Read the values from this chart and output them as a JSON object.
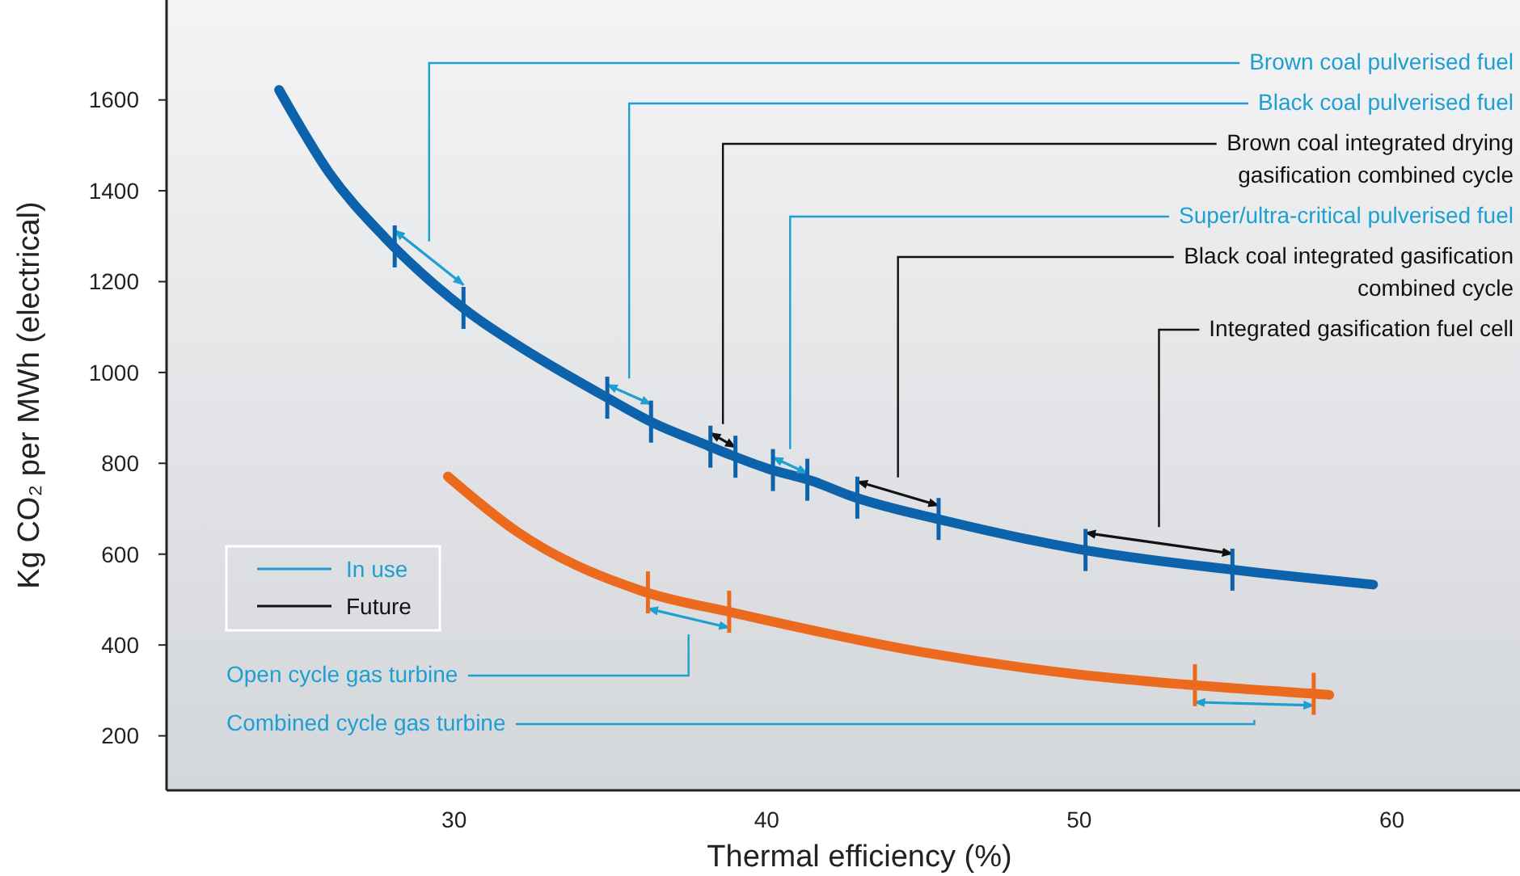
{
  "chart_data": {
    "type": "line",
    "xlabel": "Thermal efficiency (%)",
    "ylabel": "Kg CO₂ per MWh (electrical)",
    "xlim": [
      20.8,
      64.1
    ],
    "xticks": [
      30,
      40,
      50,
      60
    ],
    "ylim": [
      80,
      1820
    ],
    "yticks": [
      200,
      400,
      600,
      800,
      1000,
      1200,
      1400,
      1600
    ],
    "grid": false,
    "legend": "left",
    "line_style": "solid",
    "series": [
      {
        "color": "#0d63ab",
        "x": [
          24.4,
          26,
          27.8,
          30.4,
          32.5,
          34.7,
          36.4,
          37.9,
          38.9,
          40,
          41.5,
          42.7,
          45.8,
          50,
          55,
          59.4
        ],
        "values": [
          1622,
          1440,
          1296,
          1136,
          1040,
          952,
          888,
          845,
          817,
          789,
          760,
          728,
          672,
          611,
          565,
          533
        ]
      },
      {
        "color": "#ec6a1e",
        "x": [
          29.8,
          32,
          36,
          39,
          45,
          50,
          53.4,
          57.6,
          58
        ],
        "values": [
          771,
          650,
          519,
          470,
          384,
          335,
          313,
          292,
          290
        ]
      },
      {
        "name": "In use",
        "color": "#1e9fd1",
        "x": [
          28.1,
          30.3
        ],
        "values": [
          1313,
          1193
        ]
      },
      {
        "color": "#1e9fd1",
        "x": [
          34.9,
          36.3
        ],
        "values": [
          973,
          930
        ]
      },
      {
        "name": "Future",
        "color": "#111111",
        "x": [
          38.2,
          39
        ],
        "values": [
          867,
          835
        ]
      },
      {
        "color": "#1e9fd1",
        "x": [
          40.2,
          41.3
        ],
        "values": [
          813,
          778
        ]
      },
      {
        "color": "#111111",
        "x": [
          42.9,
          45.5
        ],
        "values": [
          760,
          707
        ]
      },
      {
        "color": "#111111",
        "x": [
          50.2,
          54.9
        ],
        "values": [
          647,
          601
        ]
      },
      {
        "color": "#1e9fd1",
        "x": [
          36.2,
          38.8
        ],
        "values": [
          480,
          438
        ]
      },
      {
        "color": "#1e9fd1",
        "x": [
          53.7,
          57.5
        ],
        "values": [
          274,
          267
        ]
      }
    ],
    "annotations": [
      "Brown coal pulverised fuel",
      "Black coal pulverised fuel",
      "Brown coal integrated drying\ngasification combined cycle",
      "Super/ultra-critical pulverised fuel",
      "Black coal integrated gasification\ncombined cycle",
      "Integrated gasification fuel cell",
      "Open cycle gas turbine",
      "Combined cycle gas turbine"
    ]
  }
}
